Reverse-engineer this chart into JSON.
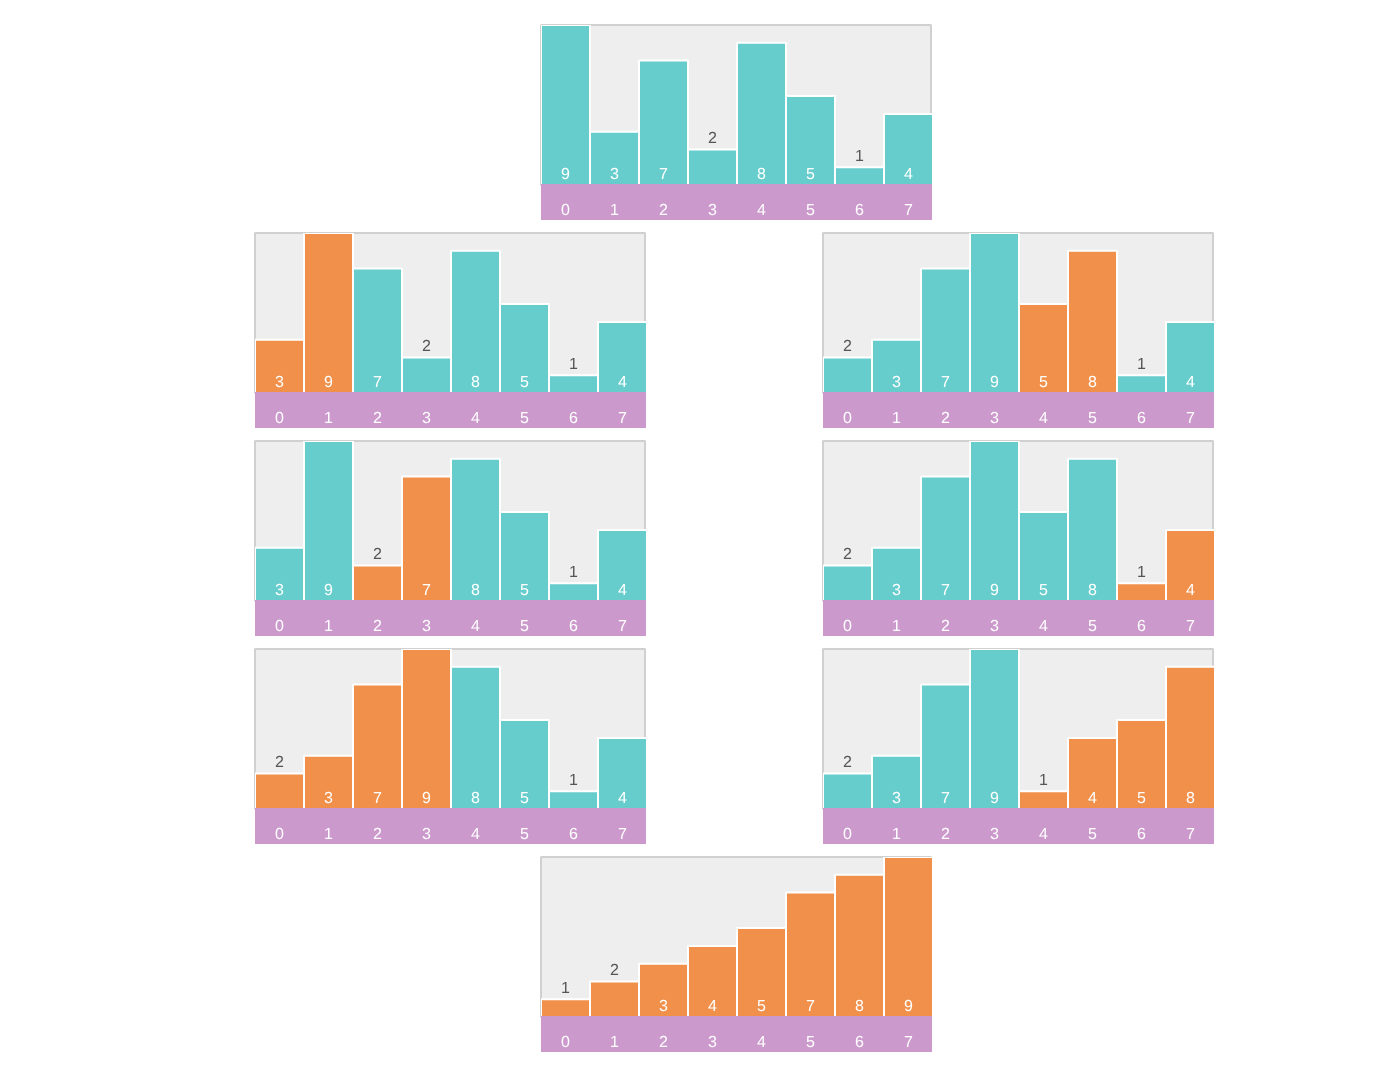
{
  "chart_data": [
    {
      "type": "bar",
      "categories": [
        "0",
        "1",
        "2",
        "3",
        "4",
        "5",
        "6",
        "7"
      ],
      "values": [
        9,
        3,
        7,
        2,
        8,
        5,
        1,
        4
      ],
      "colors": [
        "#66cdcc",
        "#66cdcc",
        "#66cdcc",
        "#66cdcc",
        "#66cdcc",
        "#66cdcc",
        "#66cdcc",
        "#66cdcc"
      ],
      "data_labels": true
    },
    {
      "type": "bar",
      "categories": [
        "0",
        "1",
        "2",
        "3",
        "4",
        "5",
        "6",
        "7"
      ],
      "values": [
        3,
        9,
        7,
        2,
        8,
        5,
        1,
        4
      ],
      "colors": [
        "#f0904a",
        "#f0904a",
        "#66cdcc",
        "#66cdcc",
        "#66cdcc",
        "#66cdcc",
        "#66cdcc",
        "#66cdcc"
      ],
      "data_labels": true
    },
    {
      "type": "bar",
      "categories": [
        "0",
        "1",
        "2",
        "3",
        "4",
        "5",
        "6",
        "7"
      ],
      "values": [
        2,
        3,
        7,
        9,
        5,
        8,
        1,
        4
      ],
      "colors": [
        "#66cdcc",
        "#66cdcc",
        "#66cdcc",
        "#66cdcc",
        "#f0904a",
        "#f0904a",
        "#66cdcc",
        "#66cdcc"
      ],
      "data_labels": true
    },
    {
      "type": "bar",
      "categories": [
        "0",
        "1",
        "2",
        "3",
        "4",
        "5",
        "6",
        "7"
      ],
      "values": [
        3,
        9,
        2,
        7,
        8,
        5,
        1,
        4
      ],
      "colors": [
        "#66cdcc",
        "#66cdcc",
        "#f0904a",
        "#f0904a",
        "#66cdcc",
        "#66cdcc",
        "#66cdcc",
        "#66cdcc"
      ],
      "data_labels": true
    },
    {
      "type": "bar",
      "categories": [
        "0",
        "1",
        "2",
        "3",
        "4",
        "5",
        "6",
        "7"
      ],
      "values": [
        2,
        3,
        7,
        9,
        5,
        8,
        1,
        4
      ],
      "colors": [
        "#66cdcc",
        "#66cdcc",
        "#66cdcc",
        "#66cdcc",
        "#66cdcc",
        "#66cdcc",
        "#f0904a",
        "#f0904a"
      ],
      "data_labels": true
    },
    {
      "type": "bar",
      "categories": [
        "0",
        "1",
        "2",
        "3",
        "4",
        "5",
        "6",
        "7"
      ],
      "values": [
        2,
        3,
        7,
        9,
        8,
        5,
        1,
        4
      ],
      "colors": [
        "#f0904a",
        "#f0904a",
        "#f0904a",
        "#f0904a",
        "#66cdcc",
        "#66cdcc",
        "#66cdcc",
        "#66cdcc"
      ],
      "data_labels": true
    },
    {
      "type": "bar",
      "categories": [
        "0",
        "1",
        "2",
        "3",
        "4",
        "5",
        "6",
        "7"
      ],
      "values": [
        2,
        3,
        7,
        9,
        1,
        4,
        5,
        8
      ],
      "colors": [
        "#66cdcc",
        "#66cdcc",
        "#66cdcc",
        "#66cdcc",
        "#f0904a",
        "#f0904a",
        "#f0904a",
        "#f0904a"
      ],
      "data_labels": true
    },
    {
      "type": "bar",
      "categories": [
        "0",
        "1",
        "2",
        "3",
        "4",
        "5",
        "6",
        "7"
      ],
      "values": [
        1,
        2,
        3,
        4,
        5,
        7,
        8,
        9
      ],
      "colors": [
        "#f0904a",
        "#f0904a",
        "#f0904a",
        "#f0904a",
        "#f0904a",
        "#f0904a",
        "#f0904a",
        "#f0904a"
      ],
      "data_labels": true
    }
  ]
}
